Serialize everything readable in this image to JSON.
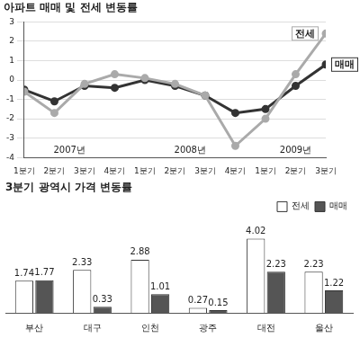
{
  "chart_data": [
    {
      "type": "line",
      "title": "아파트 매매 및 전세 변동률",
      "categories": [
        "1분기",
        "2분기",
        "3분기",
        "4분기",
        "1분기",
        "2분기",
        "3분기",
        "4분기",
        "1분기",
        "2분기",
        "3분기"
      ],
      "groups": [
        {
          "label": "2007년",
          "count": 4
        },
        {
          "label": "2008년",
          "count": 4
        },
        {
          "label": "2009년",
          "count": 3
        }
      ],
      "series": [
        {
          "name": "전세",
          "color": "#aaaaaa",
          "marker": "circle",
          "values": [
            -0.6,
            -1.7,
            -0.2,
            0.3,
            0.1,
            -0.2,
            -0.8,
            -3.4,
            -2.0,
            0.3,
            2.4
          ]
        },
        {
          "name": "매매",
          "color": "#333333",
          "marker": "circle",
          "values": [
            -0.5,
            -1.1,
            -0.3,
            -0.4,
            0.0,
            -0.3,
            -0.8,
            -1.7,
            -1.5,
            -0.3,
            0.8
          ]
        }
      ],
      "ylim": [
        -4,
        3
      ],
      "yticks": [
        -4,
        -3,
        -2,
        -1,
        0,
        1,
        2,
        3
      ],
      "grid": true
    },
    {
      "type": "bar",
      "title": "3분기 광역시 가격 변동률",
      "categories": [
        "부산",
        "대구",
        "인천",
        "광주",
        "대전",
        "울산"
      ],
      "series": [
        {
          "name": "전세",
          "color": "#ffffff",
          "values": [
            1.74,
            2.33,
            2.88,
            0.27,
            4.02,
            2.23
          ]
        },
        {
          "name": "매매",
          "color": "#555555",
          "values": [
            1.77,
            0.33,
            1.01,
            0.15,
            2.23,
            1.22
          ]
        }
      ],
      "data_labels": true,
      "legend": "top-right",
      "tick_labels": "x",
      "grid": false
    }
  ]
}
